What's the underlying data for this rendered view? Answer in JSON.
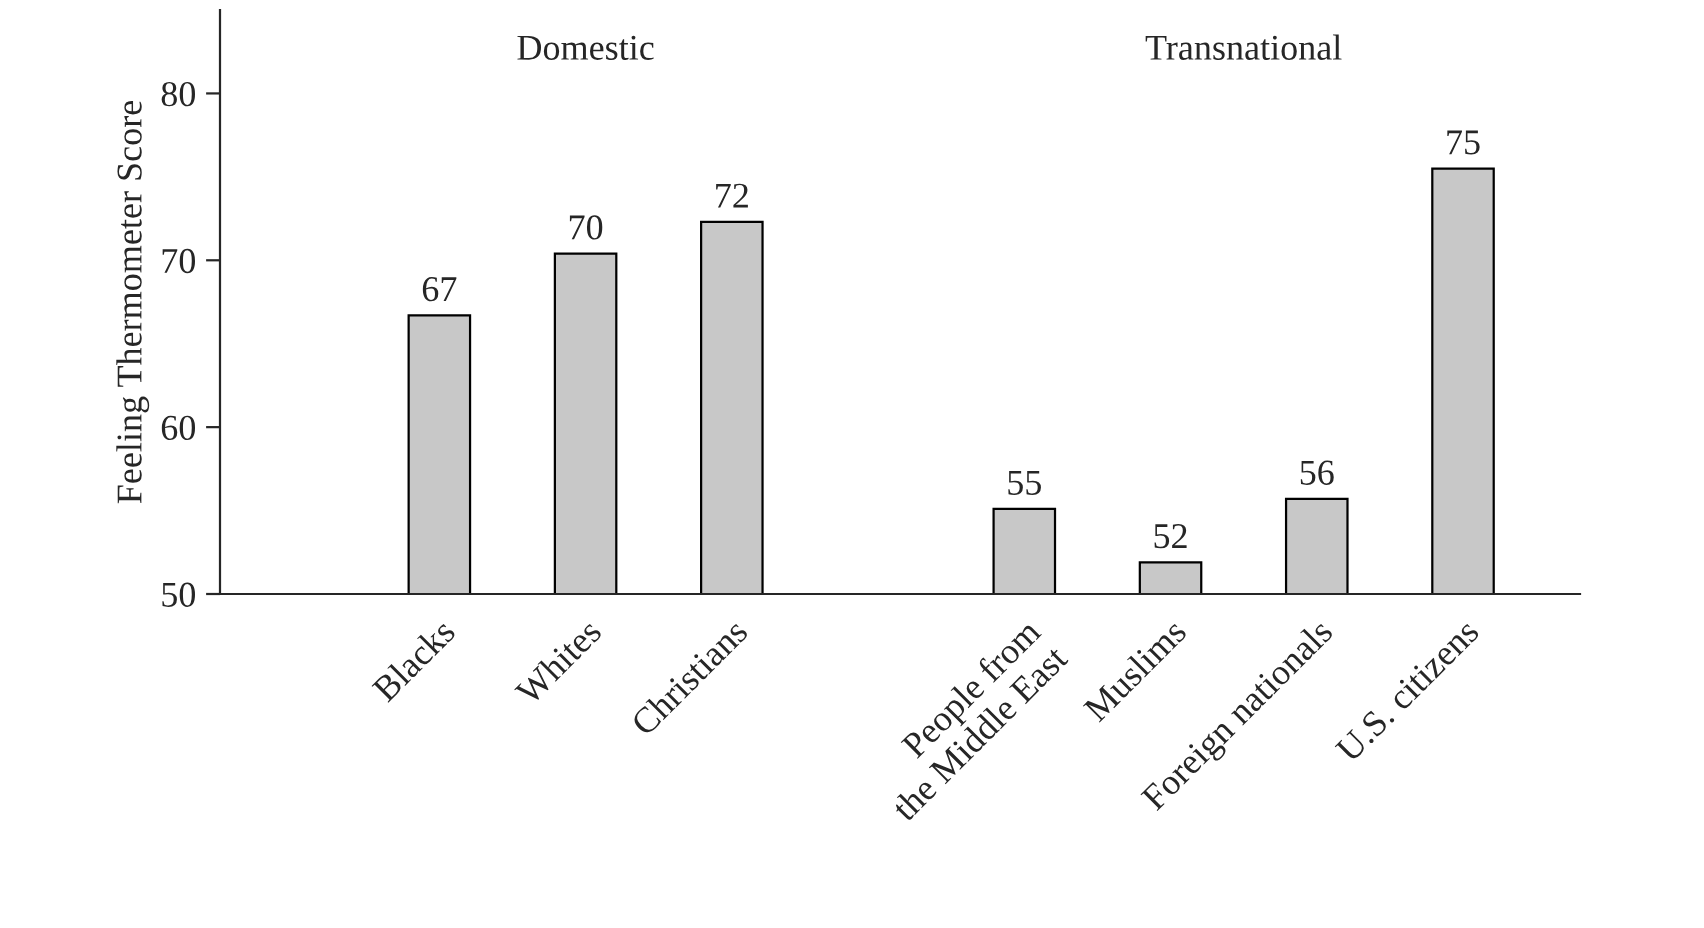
{
  "chart_data": {
    "type": "bar",
    "ylabel": "Feeling Thermometer Score",
    "categories": [
      "Blacks",
      "Whites",
      "Christians",
      null,
      "People from\nthe Middle East",
      "Muslims",
      "Foreign nationals",
      "U.S. citizens"
    ],
    "values": [
      66.7,
      70.4,
      72.3,
      null,
      55.1,
      51.9,
      55.7,
      75.5
    ],
    "value_labels": [
      "67",
      "70",
      "72",
      null,
      "55",
      "52",
      "56",
      "75"
    ],
    "color": "#c8c8c8",
    "ylim": [
      50,
      85
    ],
    "yticks": [
      50,
      60,
      70,
      80
    ],
    "grid": false,
    "legend": false,
    "annotations": [
      "Domestic",
      "Transnational"
    ]
  }
}
